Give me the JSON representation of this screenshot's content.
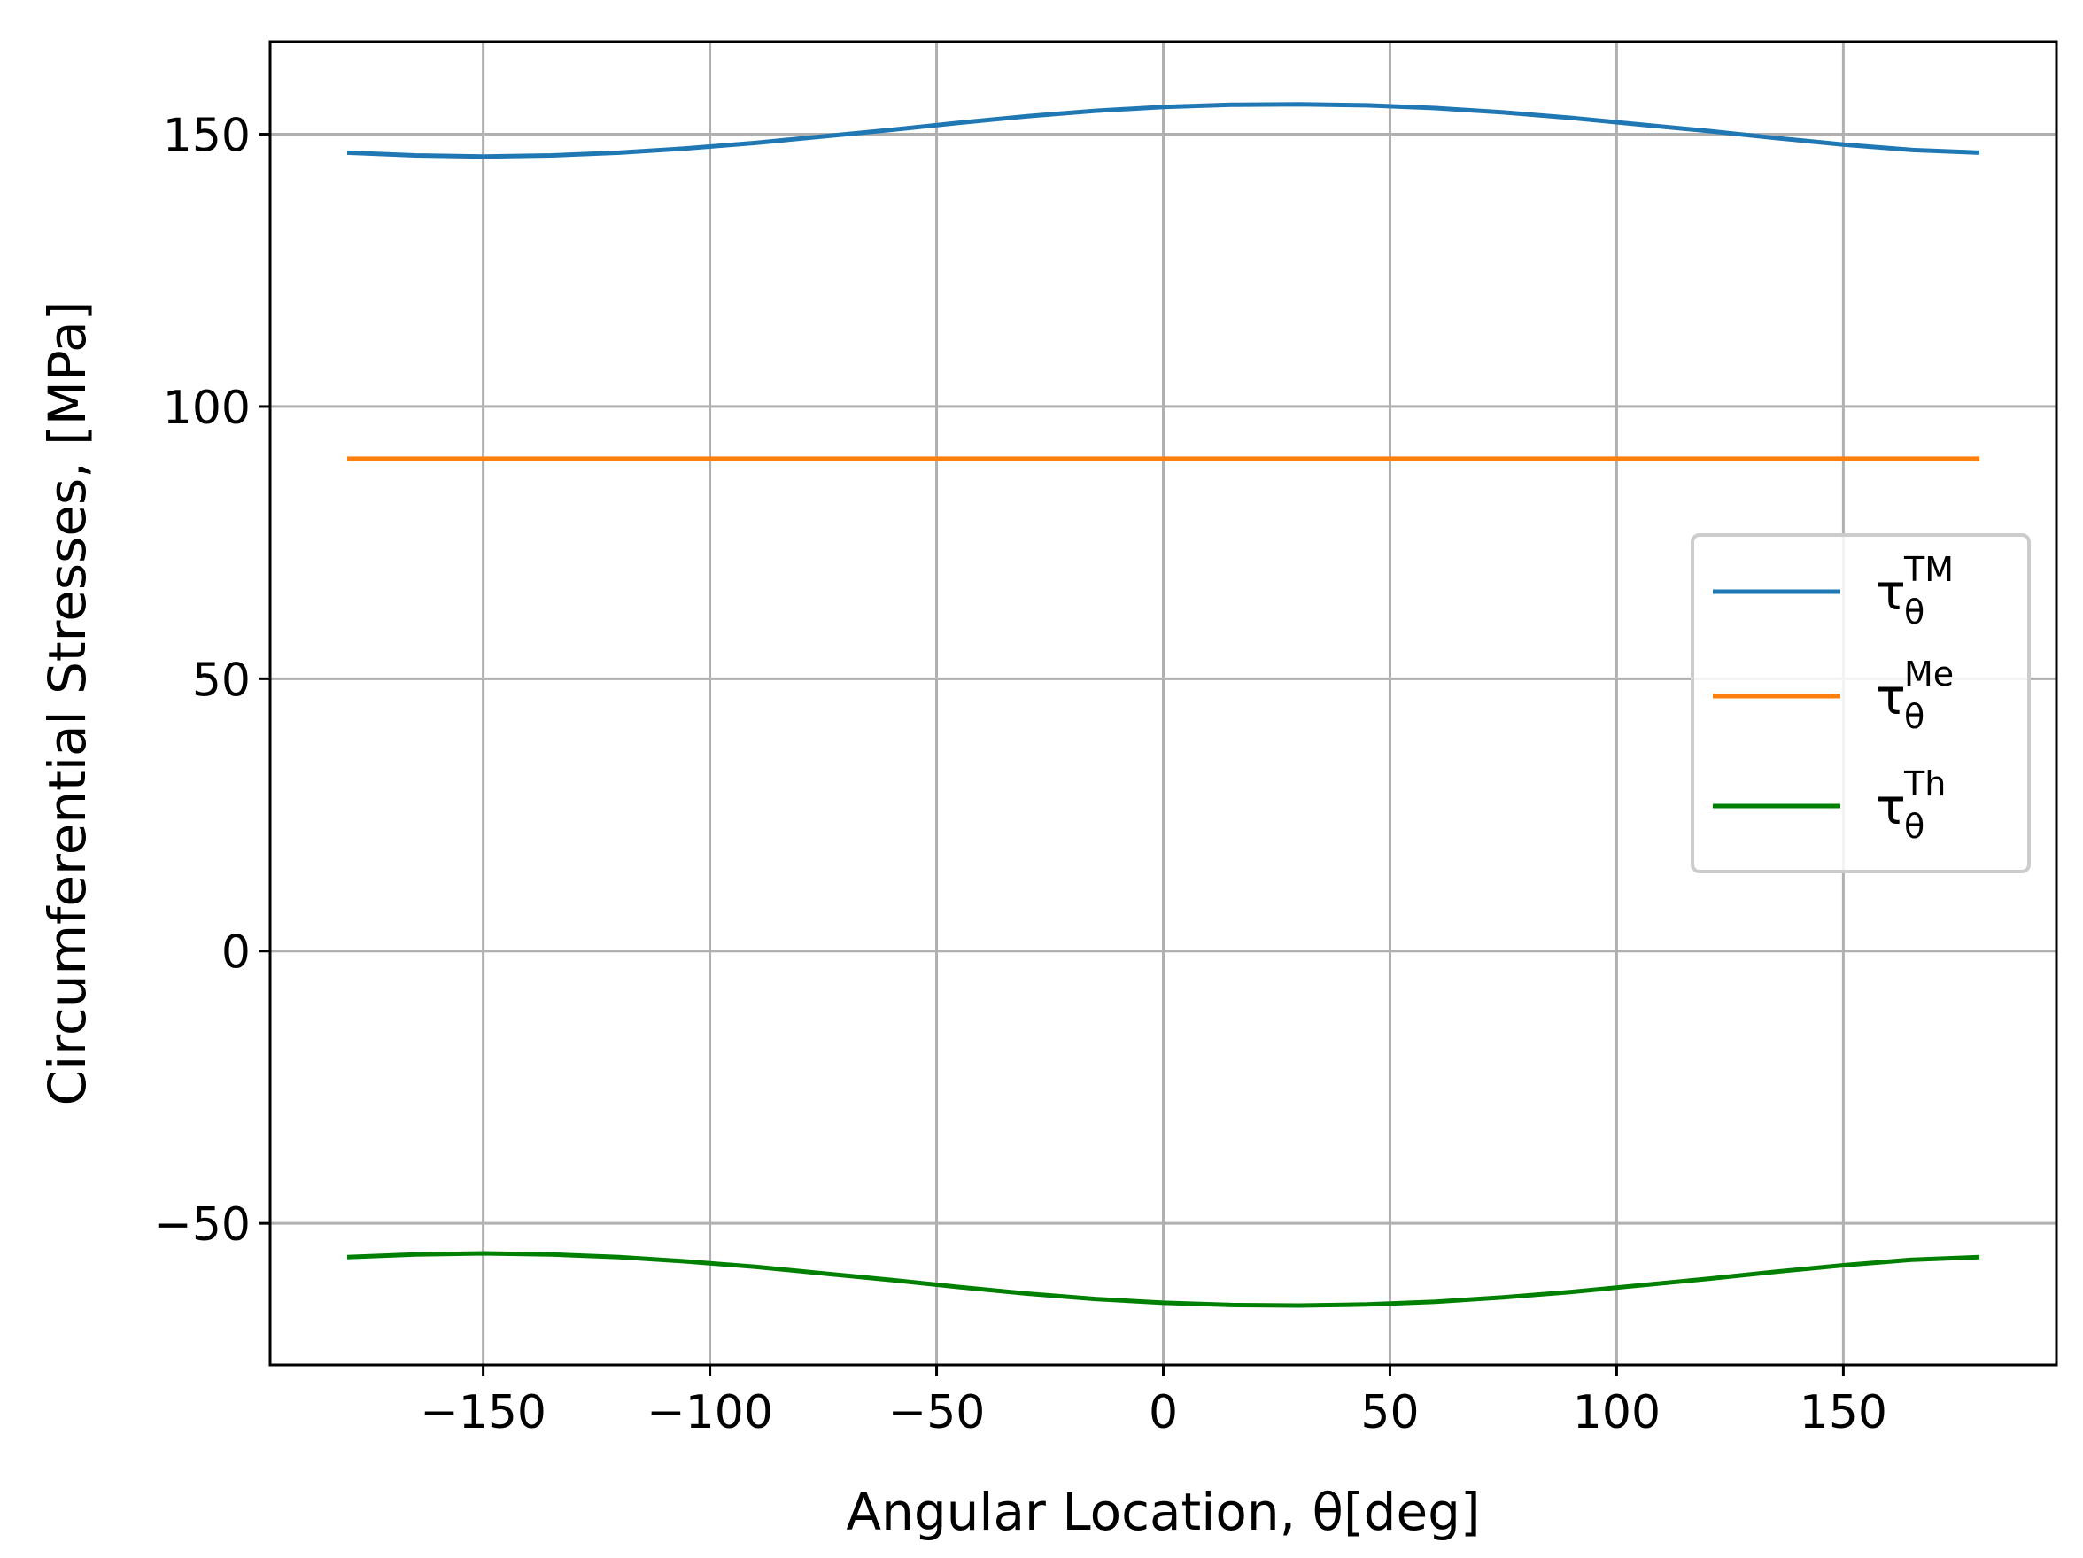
{
  "chart_data": {
    "type": "line",
    "title": "",
    "xlabel": "Angular Location, θ[deg]",
    "ylabel": "Circumferential  Stresses, [MPa]",
    "xlim": [
      -197,
      197
    ],
    "ylim": [
      -76,
      167
    ],
    "xticks": [
      -150,
      -100,
      -50,
      0,
      50,
      100,
      150
    ],
    "xtick_labels": [
      "−150",
      "−100",
      "−50",
      "0",
      "50",
      "100",
      "150"
    ],
    "yticks": [
      -50,
      0,
      50,
      100,
      150
    ],
    "ytick_labels": [
      "−50",
      "0",
      "50",
      "100",
      "150"
    ],
    "grid": true,
    "legend_position": "center-right",
    "x": [
      -180,
      -165,
      -150,
      -135,
      -120,
      -105,
      -90,
      -75,
      -60,
      -45,
      -30,
      -15,
      0,
      15,
      30,
      45,
      60,
      75,
      90,
      105,
      120,
      135,
      150,
      165,
      180
    ],
    "series": [
      {
        "name": "τθTM",
        "legend": {
          "base": "τ",
          "sub": "θ",
          "sup": "TM"
        },
        "color": "#1f77b4",
        "values": [
          146.6,
          146.1,
          145.9,
          146.1,
          146.6,
          147.4,
          148.4,
          149.6,
          150.8,
          152.1,
          153.3,
          154.3,
          155.0,
          155.4,
          155.5,
          155.3,
          154.8,
          154.0,
          153.0,
          151.8,
          150.6,
          149.3,
          148.1,
          147.1,
          146.6
        ]
      },
      {
        "name": "τθMe",
        "legend": {
          "base": "τ",
          "sub": "θ",
          "sup": "Me"
        },
        "color": "#ff7f0e",
        "values": [
          90.4,
          90.4,
          90.4,
          90.4,
          90.4,
          90.4,
          90.4,
          90.4,
          90.4,
          90.4,
          90.4,
          90.4,
          90.4,
          90.4,
          90.4,
          90.4,
          90.4,
          90.4,
          90.4,
          90.4,
          90.4,
          90.4,
          90.4,
          90.4,
          90.4
        ]
      },
      {
        "name": "τθTh",
        "legend": {
          "base": "τ",
          "sub": "θ",
          "sup": "Th"
        },
        "color": "#008000",
        "values": [
          -56.2,
          -55.7,
          -55.5,
          -55.7,
          -56.2,
          -57.0,
          -58.0,
          -59.2,
          -60.4,
          -61.7,
          -62.9,
          -63.9,
          -64.6,
          -65.0,
          -65.1,
          -64.9,
          -64.4,
          -63.6,
          -62.6,
          -61.4,
          -60.2,
          -58.9,
          -57.7,
          -56.7,
          -56.2
        ]
      }
    ]
  }
}
